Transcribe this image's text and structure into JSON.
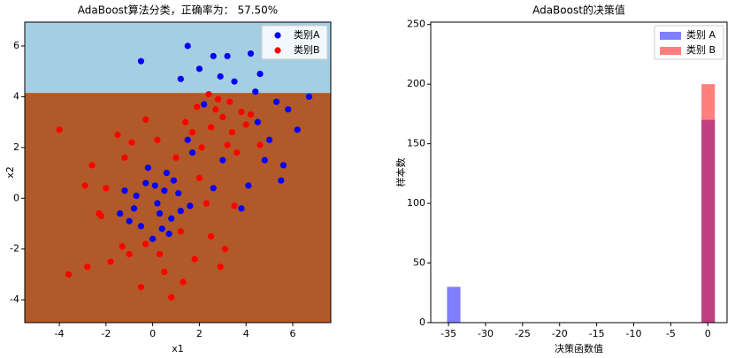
{
  "chart_data": [
    {
      "type": "scatter",
      "title": "AdaBoost算法分类，正确率为： 57.50%",
      "x_label": "x1",
      "y_label": "x2",
      "xlim": [
        -5.48,
        7.63
      ],
      "ylim": [
        -4.9,
        6.94
      ],
      "xticks": [
        -4,
        -2,
        0,
        2,
        4,
        6
      ],
      "yticks": [
        -4,
        -2,
        0,
        2,
        4,
        6
      ],
      "background": {
        "split_y": 4.15,
        "above_color": "#a6cee3",
        "below_color": "#b15928"
      },
      "legend": "upper right",
      "series": [
        {
          "name": "类别A",
          "color": "#0000ff",
          "x": [
            -0.5,
            1.5,
            2.0,
            2.6,
            3.2,
            4.2,
            4.6,
            6.7,
            1.2,
            5.3,
            4.5,
            5.0,
            5.6,
            5.5,
            6.2,
            4.1,
            3.8,
            4.8,
            3.0,
            2.6,
            1.5,
            1.7,
            0.5,
            0.2,
            -0.3,
            -0.8,
            -1.2,
            0.8,
            0.6,
            1.2,
            -0.5,
            0.0,
            0.4,
            -1.4,
            1.1,
            0.9,
            -0.2,
            0.1,
            -0.7,
            1.6,
            0.3,
            -1.0,
            0.7,
            2.2,
            4.4,
            5.8,
            3.5,
            2.9
          ],
          "y": [
            5.4,
            6.0,
            5.1,
            5.6,
            5.6,
            5.7,
            4.9,
            4.0,
            4.7,
            3.8,
            3.0,
            2.3,
            1.3,
            0.7,
            2.7,
            0.5,
            -0.4,
            1.5,
            1.5,
            0.4,
            2.3,
            1.8,
            0.3,
            -0.2,
            0.6,
            -0.4,
            0.3,
            -0.8,
            1.0,
            -0.5,
            -1.1,
            -1.6,
            -1.2,
            -0.6,
            0.2,
            0.7,
            1.2,
            0.5,
            0.1,
            -0.3,
            -0.6,
            -0.9,
            -1.4,
            3.7,
            4.2,
            3.5,
            4.6,
            4.8
          ]
        },
        {
          "name": "类别B",
          "color": "#ff0000",
          "x": [
            -4,
            -3.6,
            -2.8,
            -2.6,
            -1.8,
            -1.5,
            -2.2,
            -1.2,
            -0.5,
            0.5,
            1.3,
            0.8,
            2.9,
            1.8,
            2.5,
            3.1,
            0.3,
            -1.3,
            -2.9,
            -2.0,
            -0.9,
            1.0,
            2.0,
            1.2,
            -0.3,
            3.5,
            2.3,
            1.9,
            2.5,
            3.0,
            3.4,
            3.8,
            2.8,
            3.2,
            4.0,
            2.1,
            3.6,
            2.7,
            4.6,
            1.4,
            3.3,
            2.4,
            4.2,
            1.7,
            0.2,
            -0.3,
            -2.3,
            -1.0
          ],
          "y": [
            2.7,
            -3.0,
            -2.7,
            1.3,
            -2.5,
            2.5,
            -0.7,
            1.6,
            -3.5,
            -2.9,
            -3.3,
            -3.9,
            -2.7,
            -2.4,
            -1.5,
            -2.0,
            -2.2,
            -1.9,
            0.5,
            0.4,
            2.2,
            1.6,
            0.8,
            -1.3,
            -1.8,
            -0.3,
            -0.2,
            3.6,
            2.8,
            3.2,
            2.6,
            3.4,
            3.9,
            2.1,
            2.9,
            2.0,
            1.8,
            3.5,
            2.1,
            3.0,
            3.8,
            4.1,
            3.3,
            2.6,
            2.3,
            3.1,
            -0.6,
            -2.2
          ]
        }
      ]
    },
    {
      "type": "histogram",
      "title": "AdaBoost的决策值",
      "x_label": "决策函数值",
      "y_label": "样本数",
      "xlim": [
        -37.4,
        2.6
      ],
      "ylim": [
        0,
        252
      ],
      "xticks": [
        -35,
        -30,
        -25,
        -20,
        -15,
        -10,
        -5,
        0
      ],
      "yticks": [
        0,
        50,
        100,
        150,
        200,
        250
      ],
      "legend": "upper right",
      "opacity": 0.5,
      "bins": [
        -35.2,
        -33.392,
        -31.584,
        -29.776,
        -27.968,
        -26.16,
        -24.352,
        -22.544,
        -20.736,
        -18.928,
        -17.12,
        -15.312,
        -13.504,
        -11.696,
        -9.888,
        -8.08,
        -6.272,
        -4.464,
        -2.656,
        -0.848,
        0.96
      ],
      "series": [
        {
          "name": "类别 A",
          "color": "#0000ff",
          "values": [
            30,
            0,
            0,
            0,
            0,
            0,
            0,
            0,
            0,
            0,
            0,
            0,
            0,
            0,
            0,
            0,
            0,
            0,
            0,
            170
          ]
        },
        {
          "name": "类别 B",
          "color": "#ff0000",
          "values": [
            0,
            0,
            0,
            0,
            0,
            0,
            0,
            0,
            0,
            0,
            0,
            0,
            0,
            0,
            0,
            0,
            0,
            0,
            0,
            200
          ]
        }
      ]
    }
  ]
}
